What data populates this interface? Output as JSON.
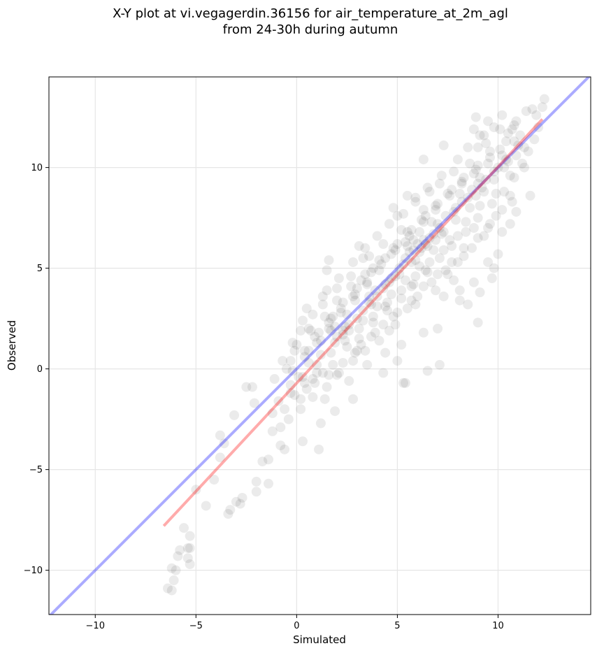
{
  "chart_data": {
    "type": "scatter",
    "title": "X-Y plot at vi.vegagerdin.36156 for air_temperature_at_2m_agl",
    "subtitle": "from 24-30h during autumn",
    "xlabel": "Simulated",
    "ylabel": "Observed",
    "xlim": [
      -12.3,
      14.6
    ],
    "ylim": [
      -12.2,
      14.5
    ],
    "x_ticks": [
      -10,
      -5,
      0,
      5,
      10
    ],
    "y_ticks": [
      -10,
      -5,
      0,
      5,
      10
    ],
    "x_tick_labels": [
      "−10",
      "−5",
      "0",
      "5",
      "10"
    ],
    "y_tick_labels": [
      "−10",
      "−5",
      "0",
      "5",
      "10"
    ],
    "grid": true,
    "legend": "none",
    "reference_line": {
      "name": "y = x",
      "color": "#0000ff",
      "alpha": 0.33,
      "from": [
        -12.3,
        -12.3
      ],
      "to": [
        14.6,
        14.6
      ]
    },
    "fit_line": {
      "color": "#ff0000",
      "alpha": 0.33,
      "from": [
        -6.6,
        -7.8
      ],
      "to": [
        12.2,
        12.4
      ]
    },
    "point_color": "#000000",
    "point_alpha": 0.08,
    "points": [
      [
        -6.4,
        -10.9
      ],
      [
        -6.2,
        -11.0
      ],
      [
        -6.1,
        -10.5
      ],
      [
        -6.0,
        -10.0
      ],
      [
        -6.2,
        -9.9
      ],
      [
        -5.9,
        -9.3
      ],
      [
        -5.8,
        -9.0
      ],
      [
        -5.3,
        -9.7
      ],
      [
        -5.4,
        -9.4
      ],
      [
        -5.3,
        -8.9
      ],
      [
        -5.4,
        -8.9
      ],
      [
        -5.3,
        -8.3
      ],
      [
        -5.6,
        -7.9
      ],
      [
        -5.0,
        -6.0
      ],
      [
        -4.5,
        -6.8
      ],
      [
        -3.4,
        -7.2
      ],
      [
        -3.3,
        -7.0
      ],
      [
        -3.0,
        -6.6
      ],
      [
        -2.8,
        -6.7
      ],
      [
        -2.7,
        -6.4
      ],
      [
        -4.1,
        -5.5
      ],
      [
        -2.0,
        -5.6
      ],
      [
        -1.4,
        -5.7
      ],
      [
        -2.0,
        -6.1
      ],
      [
        -3.8,
        -4.4
      ],
      [
        -1.7,
        -4.6
      ],
      [
        -1.4,
        -4.5
      ],
      [
        -3.6,
        -3.7
      ],
      [
        -3.8,
        -3.3
      ],
      [
        -3.1,
        -2.3
      ],
      [
        -2.5,
        -0.9
      ],
      [
        -2.2,
        -0.9
      ],
      [
        -2.1,
        -1.7
      ],
      [
        -0.6,
        -4.0
      ],
      [
        -0.8,
        -3.8
      ],
      [
        1.1,
        -4.0
      ],
      [
        1.2,
        -2.7
      ],
      [
        0.3,
        -3.6
      ],
      [
        -1.2,
        -3.1
      ],
      [
        -0.8,
        -2.9
      ],
      [
        -1.2,
        -2.2
      ],
      [
        -0.6,
        -2.0
      ],
      [
        -0.3,
        -1.2
      ],
      [
        0.2,
        -1.5
      ],
      [
        0.5,
        -1.0
      ],
      [
        0.8,
        -0.5
      ],
      [
        1.3,
        -0.2
      ],
      [
        2.0,
        -0.3
      ],
      [
        1.4,
        -1.5
      ],
      [
        2.8,
        -1.5
      ],
      [
        1.9,
        -2.1
      ],
      [
        2.6,
        -0.6
      ],
      [
        3.5,
        0.2
      ],
      [
        4.4,
        0.8
      ],
      [
        4.3,
        -0.2
      ],
      [
        5.3,
        -0.7
      ],
      [
        5.4,
        -0.7
      ],
      [
        5.0,
        0.4
      ],
      [
        6.5,
        -0.1
      ],
      [
        7.1,
        0.2
      ],
      [
        5.2,
        1.2
      ],
      [
        6.3,
        1.8
      ],
      [
        7.0,
        2.0
      ],
      [
        8.1,
        3.4
      ],
      [
        8.5,
        3.2
      ],
      [
        9.0,
        2.3
      ],
      [
        9.1,
        3.8
      ],
      [
        8.1,
        3.9
      ],
      [
        7.3,
        3.6
      ],
      [
        7.8,
        4.4
      ],
      [
        9.7,
        4.5
      ],
      [
        9.8,
        5.0
      ],
      [
        10.0,
        5.7
      ],
      [
        8.8,
        4.3
      ],
      [
        9.5,
        5.3
      ],
      [
        10.2,
        6.8
      ],
      [
        10.6,
        7.2
      ],
      [
        10.9,
        7.8
      ],
      [
        11.6,
        8.6
      ],
      [
        11.3,
        11.0
      ],
      [
        11.8,
        11.4
      ],
      [
        12.0,
        12.0
      ],
      [
        11.9,
        12.6
      ],
      [
        12.2,
        13.0
      ],
      [
        12.3,
        13.4
      ],
      [
        11.7,
        12.9
      ],
      [
        9.8,
        12.0
      ],
      [
        10.2,
        12.6
      ],
      [
        9.5,
        12.3
      ],
      [
        8.9,
        12.5
      ],
      [
        8.8,
        11.9
      ],
      [
        9.3,
        11.6
      ],
      [
        10.8,
        12.1
      ],
      [
        10.5,
        11.7
      ],
      [
        9.0,
        11.0
      ],
      [
        7.3,
        11.1
      ],
      [
        6.3,
        10.4
      ],
      [
        5.5,
        8.6
      ],
      [
        4.8,
        8.0
      ],
      [
        5.0,
        7.6
      ],
      [
        3.1,
        6.1
      ],
      [
        3.3,
        5.5
      ],
      [
        1.6,
        5.4
      ],
      [
        1.5,
        4.9
      ],
      [
        0.5,
        3.0
      ],
      [
        0.3,
        2.4
      ],
      [
        -0.5,
        0.0
      ],
      [
        -0.1,
        0.9
      ],
      [
        1.5,
        3.9
      ],
      [
        2.9,
        3.4
      ],
      [
        3.2,
        4.4
      ],
      [
        3.8,
        5.0
      ],
      [
        5.8,
        5.9
      ],
      [
        6.3,
        6.4
      ],
      [
        7.0,
        7.2
      ],
      [
        6.5,
        4.8
      ],
      [
        5.7,
        4.1
      ],
      [
        4.8,
        2.6
      ],
      [
        3.9,
        1.8
      ],
      [
        4.4,
        3.1
      ],
      [
        2.5,
        1.1
      ],
      [
        1.8,
        0.2
      ],
      [
        2.3,
        1.7
      ],
      [
        3.0,
        2.5
      ],
      [
        3.6,
        3.6
      ],
      [
        4.6,
        4.3
      ],
      [
        5.1,
        4.7
      ],
      [
        5.9,
        5.4
      ],
      [
        6.5,
        6.1
      ],
      [
        7.2,
        6.7
      ],
      [
        7.9,
        7.4
      ],
      [
        8.6,
        8.0
      ],
      [
        9.3,
        8.8
      ],
      [
        9.8,
        9.4
      ],
      [
        10.3,
        10.0
      ],
      [
        10.9,
        10.6
      ],
      [
        11.2,
        10.2
      ],
      [
        10.6,
        9.6
      ],
      [
        9.9,
        8.7
      ],
      [
        9.1,
        8.1
      ],
      [
        8.4,
        7.3
      ],
      [
        7.6,
        6.4
      ],
      [
        6.8,
        5.9
      ],
      [
        6.1,
        5.1
      ],
      [
        5.4,
        4.4
      ],
      [
        4.7,
        3.7
      ],
      [
        4.0,
        3.1
      ],
      [
        3.3,
        2.4
      ],
      [
        2.6,
        1.9
      ],
      [
        1.9,
        1.3
      ],
      [
        1.2,
        0.7
      ],
      [
        0.6,
        0.3
      ],
      [
        0.1,
        -0.4
      ],
      [
        -0.3,
        -0.8
      ],
      [
        0.9,
        1.6
      ],
      [
        1.6,
        2.3
      ],
      [
        2.2,
        3.0
      ],
      [
        2.9,
        3.7
      ],
      [
        3.5,
        4.3
      ],
      [
        4.2,
        5.2
      ],
      [
        4.9,
        5.9
      ],
      [
        5.6,
        6.6
      ],
      [
        6.3,
        7.3
      ],
      [
        6.9,
        7.9
      ],
      [
        7.6,
        8.6
      ],
      [
        8.2,
        9.2
      ],
      [
        8.9,
        9.9
      ],
      [
        9.6,
        10.5
      ],
      [
        10.1,
        10.9
      ],
      [
        6.6,
        8.8
      ],
      [
        7.8,
        9.8
      ],
      [
        8.6,
        10.2
      ],
      [
        9.4,
        11.2
      ],
      [
        7.1,
        9.2
      ],
      [
        5.9,
        8.3
      ],
      [
        6.3,
        7.9
      ],
      [
        5.2,
        6.9
      ],
      [
        4.3,
        6.2
      ],
      [
        3.6,
        5.6
      ],
      [
        2.7,
        4.6
      ],
      [
        2.0,
        4.0
      ],
      [
        1.3,
        3.2
      ],
      [
        0.8,
        2.7
      ],
      [
        0.2,
        1.9
      ],
      [
        -0.2,
        1.3
      ],
      [
        0.6,
        2.0
      ],
      [
        1.8,
        2.6
      ],
      [
        2.4,
        2.1
      ],
      [
        3.1,
        1.5
      ],
      [
        3.8,
        2.3
      ],
      [
        4.5,
        2.9
      ],
      [
        5.2,
        3.5
      ],
      [
        5.8,
        4.2
      ],
      [
        6.4,
        4.9
      ],
      [
        7.1,
        5.5
      ],
      [
        7.7,
        6.1
      ],
      [
        8.4,
        6.8
      ],
      [
        9.0,
        7.5
      ],
      [
        9.7,
        8.2
      ],
      [
        10.3,
        8.8
      ],
      [
        10.8,
        9.5
      ],
      [
        8.0,
        5.3
      ],
      [
        8.7,
        6.0
      ],
      [
        9.3,
        6.6
      ],
      [
        7.4,
        4.9
      ],
      [
        6.7,
        4.3
      ],
      [
        6.0,
        3.6
      ],
      [
        5.5,
        3.0
      ],
      [
        4.9,
        2.2
      ],
      [
        4.1,
        1.4
      ],
      [
        3.4,
        0.9
      ],
      [
        2.8,
        0.4
      ],
      [
        2.1,
        -0.2
      ],
      [
        1.5,
        -0.9
      ],
      [
        0.8,
        -1.4
      ],
      [
        0.2,
        -2.0
      ],
      [
        -0.4,
        -2.5
      ],
      [
        -0.9,
        -1.6
      ],
      [
        -1.1,
        -0.5
      ],
      [
        -0.7,
        0.4
      ],
      [
        0.4,
        0.9
      ],
      [
        1.1,
        1.8
      ],
      [
        1.7,
        2.5
      ],
      [
        2.3,
        3.3
      ],
      [
        3.0,
        4.0
      ],
      [
        3.7,
        4.8
      ],
      [
        4.4,
        5.5
      ],
      [
        5.0,
        6.2
      ],
      [
        5.7,
        6.9
      ],
      [
        6.4,
        7.6
      ],
      [
        7.0,
        8.2
      ],
      [
        7.7,
        8.9
      ],
      [
        8.3,
        9.5
      ],
      [
        9.0,
        10.1
      ],
      [
        9.6,
        10.8
      ],
      [
        10.4,
        11.3
      ],
      [
        10.7,
        11.9
      ],
      [
        6.0,
        6.2
      ],
      [
        6.2,
        6.0
      ],
      [
        5.8,
        6.4
      ],
      [
        6.4,
        6.2
      ],
      [
        6.1,
        5.8
      ],
      [
        5.6,
        5.8
      ],
      [
        6.6,
        6.5
      ],
      [
        8.7,
        8.9
      ],
      [
        9.0,
        9.2
      ],
      [
        9.2,
        9.0
      ],
      [
        8.9,
        8.6
      ],
      [
        9.4,
        9.4
      ],
      [
        2.3,
        1.9
      ],
      [
        2.6,
        2.2
      ],
      [
        2.0,
        1.6
      ],
      [
        1.7,
        1.9
      ],
      [
        3.3,
        2.9
      ],
      [
        3.6,
        3.3
      ],
      [
        4.0,
        3.6
      ],
      [
        4.3,
        4.0
      ],
      [
        4.7,
        4.5
      ],
      [
        5.1,
        5.0
      ],
      [
        5.4,
        5.5
      ],
      [
        7.4,
        7.6
      ],
      [
        7.9,
        8.0
      ],
      [
        8.2,
        8.3
      ],
      [
        10.0,
        10.0
      ],
      [
        10.5,
        10.3
      ],
      [
        11.0,
        11.1
      ],
      [
        2.9,
        0.8
      ],
      [
        3.2,
        1.2
      ],
      [
        4.6,
        1.9
      ],
      [
        5.9,
        3.2
      ],
      [
        6.9,
        3.9
      ],
      [
        7.5,
        4.7
      ],
      [
        8.3,
        5.6
      ],
      [
        1.0,
        -0.2
      ],
      [
        0.4,
        -0.7
      ],
      [
        -0.1,
        -1.3
      ],
      [
        1.3,
        3.6
      ],
      [
        2.1,
        4.5
      ],
      [
        2.8,
        5.3
      ],
      [
        3.4,
        6.0
      ],
      [
        4.0,
        6.6
      ],
      [
        4.6,
        7.2
      ],
      [
        5.3,
        7.7
      ],
      [
        5.9,
        8.5
      ],
      [
        6.5,
        9.0
      ],
      [
        7.2,
        9.6
      ],
      [
        8.0,
        10.4
      ],
      [
        8.5,
        11.0
      ],
      [
        9.1,
        11.6
      ],
      [
        10.1,
        11.9
      ],
      [
        10.9,
        12.3
      ],
      [
        11.4,
        12.8
      ],
      [
        11.1,
        11.6
      ],
      [
        11.5,
        10.8
      ],
      [
        11.3,
        10.0
      ],
      [
        10.6,
        8.6
      ],
      [
        9.9,
        7.6
      ],
      [
        9.5,
        7.0
      ],
      [
        8.8,
        7.0
      ],
      [
        8.0,
        6.6
      ],
      [
        7.3,
        5.9
      ],
      [
        6.6,
        5.3
      ],
      [
        5.9,
        4.6
      ],
      [
        5.2,
        3.9
      ],
      [
        4.5,
        3.3
      ],
      [
        3.8,
        2.6
      ],
      [
        3.1,
        2.0
      ],
      [
        2.4,
        1.4
      ],
      [
        1.7,
        0.8
      ],
      [
        1.0,
        0.2
      ],
      [
        0.3,
        -0.4
      ],
      [
        -0.3,
        0.4
      ],
      [
        0.0,
        1.2
      ],
      [
        0.7,
        1.9
      ],
      [
        1.4,
        2.6
      ],
      [
        2.0,
        3.4
      ],
      [
        2.7,
        4.1
      ],
      [
        3.4,
        4.7
      ],
      [
        4.1,
        5.4
      ],
      [
        4.8,
        6.0
      ],
      [
        5.5,
        6.8
      ],
      [
        6.2,
        7.4
      ],
      [
        6.9,
        8.1
      ],
      [
        7.5,
        8.7
      ],
      [
        8.2,
        9.3
      ],
      [
        8.8,
        9.7
      ],
      [
        9.5,
        10.2
      ],
      [
        10.2,
        10.6
      ],
      [
        10.8,
        11.3
      ],
      [
        6.1,
        6.8
      ],
      [
        5.4,
        6.3
      ],
      [
        4.7,
        5.7
      ],
      [
        4.1,
        4.9
      ],
      [
        3.5,
        4.2
      ],
      [
        2.8,
        3.6
      ],
      [
        2.2,
        2.8
      ],
      [
        1.6,
        2.0
      ],
      [
        1.0,
        1.3
      ],
      [
        0.4,
        0.6
      ],
      [
        -0.2,
        -0.1
      ],
      [
        0.9,
        -0.7
      ],
      [
        1.6,
        -0.3
      ],
      [
        2.3,
        0.3
      ],
      [
        3.0,
        0.9
      ],
      [
        3.7,
        1.6
      ],
      [
        4.3,
        2.2
      ],
      [
        5.0,
        2.8
      ],
      [
        5.7,
        3.4
      ],
      [
        6.3,
        4.1
      ],
      [
        7.0,
        4.7
      ],
      [
        7.7,
        5.3
      ],
      [
        8.3,
        6.0
      ],
      [
        9.0,
        6.5
      ],
      [
        9.6,
        7.2
      ],
      [
        10.2,
        7.9
      ],
      [
        10.7,
        8.3
      ],
      [
        6.8,
        6.7
      ],
      [
        7.1,
        7.0
      ],
      [
        6.7,
        7.3
      ],
      [
        5.7,
        5.3
      ],
      [
        5.5,
        6.1
      ],
      [
        6.9,
        6.4
      ],
      [
        7.3,
        6.8
      ],
      [
        8.5,
        8.5
      ],
      [
        8.1,
        8.7
      ],
      [
        9.1,
        9.5
      ],
      [
        9.8,
        9.8
      ],
      [
        10.4,
        10.4
      ],
      [
        3.9,
        3.9
      ],
      [
        4.4,
        4.2
      ],
      [
        3.7,
        3.2
      ],
      [
        2.5,
        2.7
      ],
      [
        1.2,
        1.4
      ],
      [
        0.6,
        0.9
      ],
      [
        1.9,
        2.1
      ],
      [
        4.9,
        4.6
      ],
      [
        5.3,
        5.2
      ],
      [
        7.8,
        7.8
      ]
    ]
  }
}
